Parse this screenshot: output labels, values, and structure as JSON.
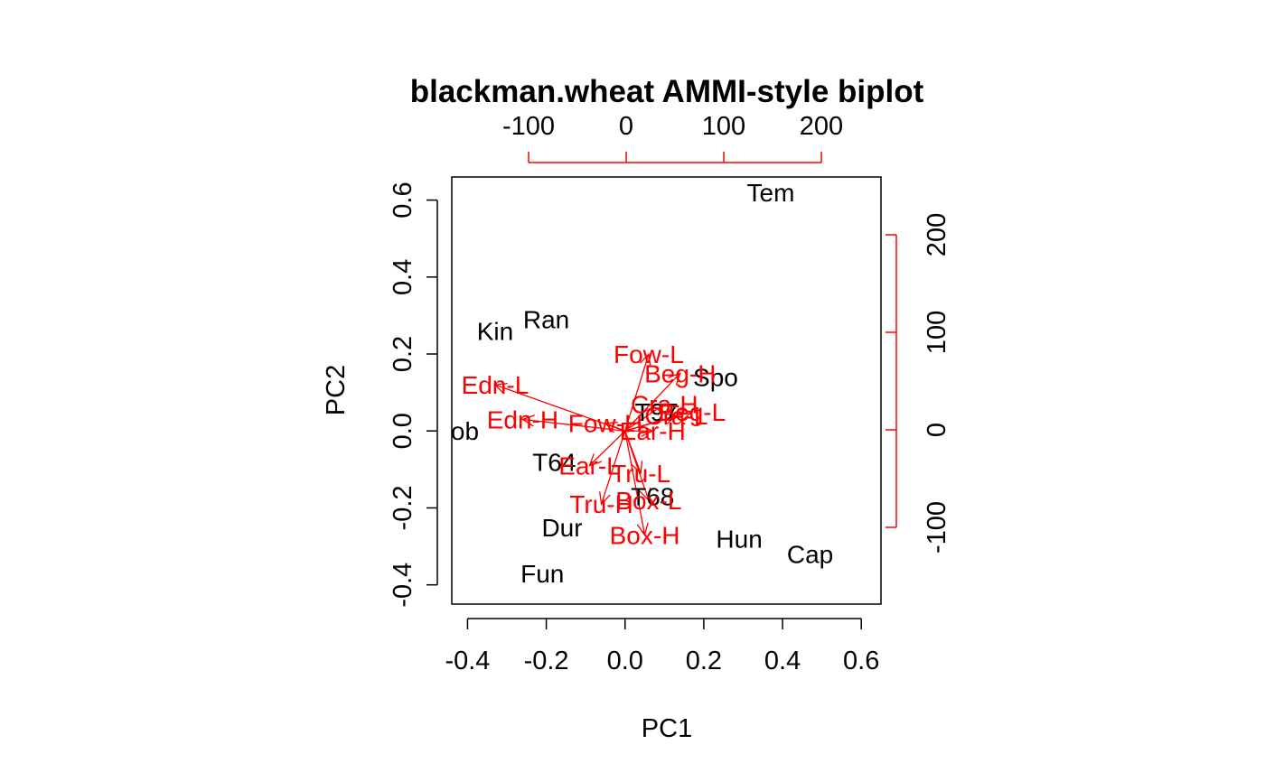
{
  "chart_data": {
    "type": "scatter",
    "subtype": "biplot",
    "title": "blackman.wheat AMMI-style biplot",
    "xlabel": "PC1",
    "ylabel": "PC2",
    "xlim": [
      -0.44,
      0.65
    ],
    "ylim": [
      -0.45,
      0.66
    ],
    "x_ticks": [
      "-0.4",
      "-0.2",
      "0.0",
      "0.2",
      "0.4",
      "0.6"
    ],
    "y_ticks": [
      "-0.4",
      "-0.2",
      "0.0",
      "0.2",
      "0.4",
      "0.6"
    ],
    "secondary_x_ticks": [
      "-100",
      "0",
      "100",
      "200"
    ],
    "secondary_y_ticks": [
      "-100",
      "0",
      "100",
      "200"
    ],
    "secondary_axis_color": "#ff0000",
    "genotypes": {
      "color": "#000000",
      "points": [
        {
          "label": "Tem",
          "x": 0.37,
          "y": 0.62
        },
        {
          "label": "Ran",
          "x": -0.2,
          "y": 0.29
        },
        {
          "label": "Kin",
          "x": -0.33,
          "y": 0.26
        },
        {
          "label": "Spo",
          "x": 0.23,
          "y": 0.14
        },
        {
          "label": "T97",
          "x": 0.08,
          "y": 0.05
        },
        {
          "label": "Hob",
          "x": -0.43,
          "y": 0.0
        },
        {
          "label": "T64",
          "x": -0.18,
          "y": -0.08
        },
        {
          "label": "T68",
          "x": 0.07,
          "y": -0.17
        },
        {
          "label": "Dur",
          "x": -0.16,
          "y": -0.25
        },
        {
          "label": "Hun",
          "x": 0.29,
          "y": -0.28
        },
        {
          "label": "Cap",
          "x": 0.47,
          "y": -0.32
        },
        {
          "label": "Fun",
          "x": -0.21,
          "y": -0.37
        }
      ]
    },
    "environments": {
      "color": "#ff0000",
      "vectors": [
        {
          "label": "Fow-L",
          "x": 0.06,
          "y": 0.2
        },
        {
          "label": "Beg-H",
          "x": 0.14,
          "y": 0.15
        },
        {
          "label": "Edn-L",
          "x": -0.33,
          "y": 0.12
        },
        {
          "label": "Cra-H",
          "x": 0.1,
          "y": 0.07
        },
        {
          "label": "Beg-L",
          "x": 0.17,
          "y": 0.05
        },
        {
          "label": "Cra-L",
          "x": 0.13,
          "y": 0.04
        },
        {
          "label": "Edn-H",
          "x": -0.26,
          "y": 0.03
        },
        {
          "label": "Fow-H",
          "x": -0.05,
          "y": 0.02
        },
        {
          "label": "Ear-H",
          "x": 0.07,
          "y": 0.0
        },
        {
          "label": "Ear-L",
          "x": -0.09,
          "y": -0.09
        },
        {
          "label": "Tru-L",
          "x": 0.04,
          "y": -0.11
        },
        {
          "label": "Box-L",
          "x": 0.06,
          "y": -0.18
        },
        {
          "label": "Tru-H",
          "x": -0.06,
          "y": -0.19
        },
        {
          "label": "Box-H",
          "x": 0.05,
          "y": -0.27
        }
      ]
    }
  }
}
